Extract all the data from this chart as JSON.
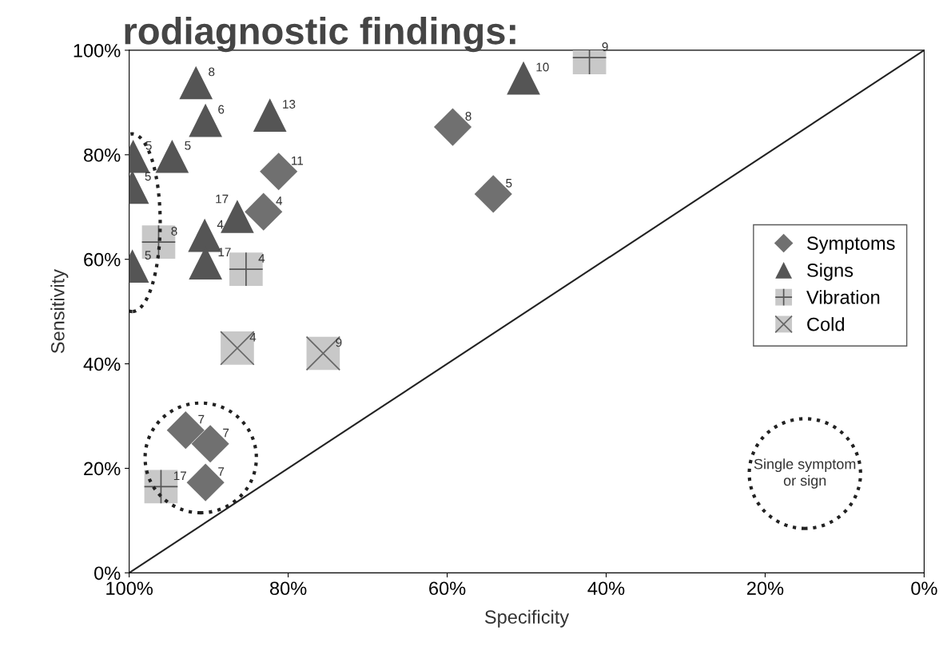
{
  "chart_data": {
    "type": "scatter",
    "title": "rodiagnostic findings:",
    "xlabel": "Specificity",
    "ylabel": "Sensitivity",
    "xlim": [
      100,
      0
    ],
    "ylim": [
      0,
      100
    ],
    "xticks": [
      {
        "value": 100,
        "label": "100%"
      },
      {
        "value": 80,
        "label": "80%"
      },
      {
        "value": 60,
        "label": "60%"
      },
      {
        "value": 40,
        "label": "40%"
      },
      {
        "value": 20,
        "label": "20%"
      },
      {
        "value": 0,
        "label": "0%"
      }
    ],
    "yticks": [
      {
        "value": 0,
        "label": "0%"
      },
      {
        "value": 20,
        "label": "20%"
      },
      {
        "value": 40,
        "label": "40%"
      },
      {
        "value": 60,
        "label": "60%"
      },
      {
        "value": 80,
        "label": "80%"
      },
      {
        "value": 100,
        "label": "100%"
      }
    ],
    "grid": false,
    "legend": "right",
    "annotations": [
      "Single symptom or sign",
      {
        "text": "11",
        "x": 81.2,
        "y": 76.8
      },
      {
        "text": "4",
        "x": 83.1,
        "y": 69.1
      },
      {
        "text": "8",
        "x": 59.3,
        "y": 85.3
      },
      {
        "text": "5",
        "x": 54.2,
        "y": 72.5
      },
      {
        "text": "7",
        "x": 92.9,
        "y": 27.3
      },
      {
        "text": "7",
        "x": 89.8,
        "y": 24.7
      },
      {
        "text": "7",
        "x": 90.4,
        "y": 17.3
      },
      {
        "text": "8",
        "x": 91.6,
        "y": 93.8
      },
      {
        "text": "6",
        "x": 90.4,
        "y": 86.6
      },
      {
        "text": "13",
        "x": 82.3,
        "y": 87.6
      },
      {
        "text": "5",
        "x": 99.5,
        "y": 79.7
      },
      {
        "text": "5",
        "x": 94.6,
        "y": 79.7
      },
      {
        "text": "5",
        "x": 99.6,
        "y": 73.8
      },
      {
        "text": "4",
        "x": 90.5,
        "y": 64.6
      },
      {
        "text": "17",
        "x": 86.4,
        "y": 68.2
      },
      {
        "text": "17",
        "x": 90.4,
        "y": 59.3
      },
      {
        "text": "5",
        "x": 99.6,
        "y": 58.7
      },
      {
        "text": "10",
        "x": 50.4,
        "y": 94.7
      },
      {
        "text": "9",
        "x": 42.1,
        "y": 98.6
      },
      {
        "text": "8",
        "x": 96.3,
        "y": 63.3
      },
      {
        "text": "4",
        "x": 85.3,
        "y": 58.1
      },
      {
        "text": "17",
        "x": 96.0,
        "y": 16.5
      },
      {
        "text": "4",
        "x": 86.4,
        "y": 43.0
      },
      {
        "text": "9",
        "x": 75.6,
        "y": 42.0
      }
    ],
    "series": [
      {
        "name": "Symptoms",
        "marker": "diamond",
        "color": "#707070",
        "x": [
          81.2,
          83.1,
          59.3,
          54.2,
          92.9,
          89.8,
          90.4
        ],
        "values": [
          76.8,
          69.1,
          85.3,
          72.5,
          27.3,
          24.7,
          17.3
        ]
      },
      {
        "name": "Signs",
        "marker": "triangle",
        "color": "#555555",
        "x": [
          91.6,
          90.4,
          82.3,
          99.5,
          94.6,
          99.6,
          90.5,
          86.4,
          90.4,
          99.6,
          50.4
        ],
        "values": [
          93.8,
          86.6,
          87.6,
          79.7,
          79.7,
          73.8,
          64.6,
          68.2,
          59.3,
          58.7,
          94.7
        ]
      },
      {
        "name": "Vibration",
        "marker": "square",
        "color": "#c8c8c8",
        "x": [
          42.1,
          96.3,
          85.3,
          96.0
        ],
        "values": [
          98.6,
          63.3,
          58.1,
          16.5
        ]
      },
      {
        "name": "Cold",
        "marker": "cross",
        "color": "#666666",
        "x": [
          86.4,
          75.6
        ],
        "values": [
          43.0,
          42.0
        ]
      },
      {
        "type": "line",
        "color": "#222222",
        "line_style": "solid",
        "x": [
          100,
          0
        ],
        "values": [
          0,
          100
        ]
      }
    ]
  }
}
